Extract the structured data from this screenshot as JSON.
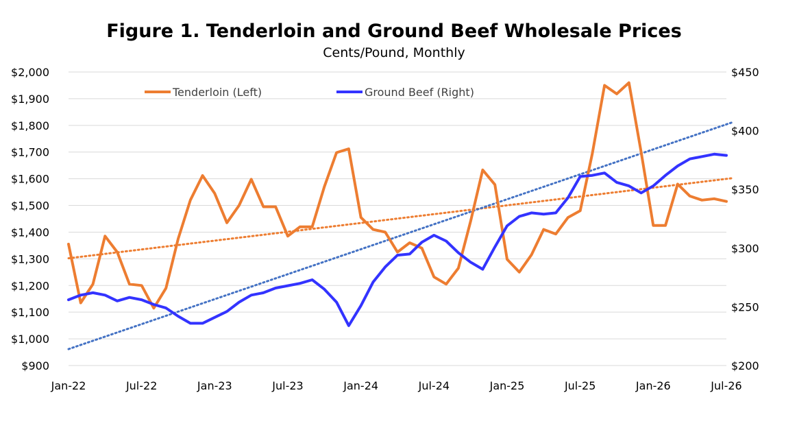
{
  "chart_data": {
    "type": "line",
    "title": "Figure 1. Tenderloin and Ground Beef Wholesale Prices",
    "subtitle": "Cents/Pound, Monthly",
    "x_tick_labels": [
      "Jan-22",
      "Jul-22",
      "Jan-23",
      "Jul-23",
      "Jan-24",
      "Jul-24",
      "Jan-25",
      "Jul-25",
      "Jan-26",
      "Jul-26"
    ],
    "x": [
      "2022-01",
      "2022-02",
      "2022-03",
      "2022-04",
      "2022-05",
      "2022-06",
      "2022-07",
      "2022-08",
      "2022-09",
      "2022-10",
      "2022-11",
      "2022-12",
      "2023-01",
      "2023-02",
      "2023-03",
      "2023-04",
      "2023-05",
      "2023-06",
      "2023-07",
      "2023-08",
      "2023-09",
      "2023-10",
      "2023-11",
      "2023-12",
      "2024-01",
      "2024-02",
      "2024-03",
      "2024-04",
      "2024-05",
      "2024-06",
      "2024-07",
      "2024-08",
      "2024-09",
      "2024-10",
      "2024-11",
      "2024-12",
      "2025-01",
      "2025-02",
      "2025-03",
      "2025-04",
      "2025-05",
      "2025-06",
      "2025-07",
      "2025-08",
      "2025-09",
      "2025-10",
      "2025-11",
      "2025-12",
      "2026-01",
      "2026-02",
      "2026-03",
      "2026-04",
      "2026-05",
      "2026-06",
      "2026-07"
    ],
    "left_axis": {
      "ylim": [
        900,
        2000
      ],
      "step": 100,
      "tick_labels": [
        "$900",
        "$1,000",
        "$1,100",
        "$1,200",
        "$1,300",
        "$1,400",
        "$1,500",
        "$1,600",
        "$1,700",
        "$1,800",
        "$1,900",
        "$2,000"
      ]
    },
    "right_axis": {
      "ylim": [
        200,
        450
      ],
      "step": 50,
      "tick_labels": [
        "$200",
        "$250",
        "$300",
        "$350",
        "$400",
        "$450"
      ]
    },
    "grid": true,
    "legend_placement": "top",
    "series": [
      {
        "name": "Tenderloin (Left)",
        "axis": "left",
        "color": "#ED7D31",
        "values": [
          1355,
          1135,
          1205,
          1385,
          1325,
          1205,
          1200,
          1115,
          1190,
          1375,
          1520,
          1612,
          1545,
          1435,
          1500,
          1598,
          1495,
          1495,
          1385,
          1420,
          1420,
          1570,
          1698,
          1712,
          1455,
          1410,
          1400,
          1325,
          1360,
          1340,
          1232,
          1205,
          1265,
          1440,
          1633,
          1578,
          1298,
          1250,
          1315,
          1410,
          1393,
          1455,
          1480,
          1695,
          1950,
          1918,
          1960,
          1700,
          1425,
          1425,
          1580,
          1535,
          1520,
          1525,
          1515
        ],
        "trend": [
          1302,
          1602
        ]
      },
      {
        "name": "Ground Beef (Right)",
        "axis": "right",
        "color": "#3333FF",
        "values": [
          256,
          260,
          262,
          260,
          255,
          258,
          256,
          252,
          249,
          242,
          236,
          236,
          241,
          246,
          254,
          260,
          262,
          266,
          268,
          270,
          273,
          265,
          254,
          234,
          251,
          271,
          284,
          294,
          295,
          305,
          311,
          306,
          296,
          288,
          282,
          301,
          319,
          327,
          330,
          329,
          330,
          343,
          361,
          362,
          364,
          356,
          353,
          347,
          353,
          362,
          370,
          376,
          378,
          380,
          379
        ],
        "trend": [
          214,
          407
        ]
      }
    ]
  }
}
